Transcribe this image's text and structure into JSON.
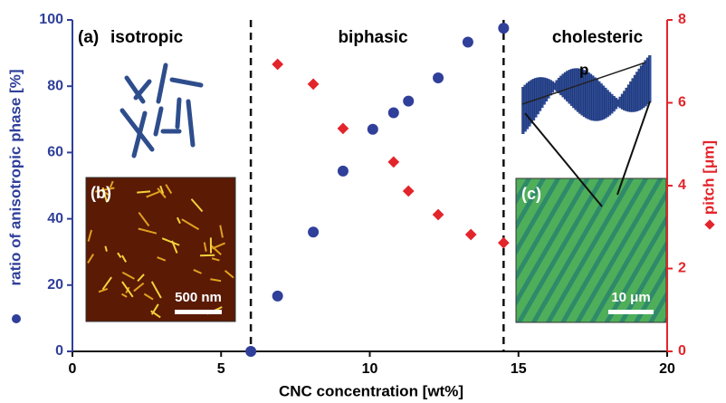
{
  "chart_data": {
    "type": "scatter",
    "xlabel": "CNC concentration [wt%]",
    "ylabel": "ratio of anisotropic phase [%]",
    "y2label": "pitch [μm]",
    "panel_label": "(a)",
    "regions": [
      "isotropic",
      "biphasic",
      "cholesteric"
    ],
    "phase_boundaries": [
      6,
      14.5
    ],
    "xlim": [
      0,
      20
    ],
    "xticks": [
      0,
      5,
      10,
      15,
      20
    ],
    "ylim": [
      0,
      100
    ],
    "yticks": [
      0,
      20,
      40,
      60,
      80,
      100
    ],
    "y2lim": [
      0,
      8
    ],
    "y2ticks": [
      0,
      2,
      4,
      6,
      8
    ],
    "series": [
      {
        "color": "#2f3f9a",
        "marker": "circle",
        "x": [
          6.0,
          6.9,
          8.1,
          9.1,
          10.1,
          10.8,
          11.3,
          12.3,
          13.3,
          14.5
        ],
        "values": [
          0,
          16.7,
          36,
          54.4,
          67,
          72,
          75.5,
          82.5,
          93.3,
          97.5
        ]
      },
      {
        "color": "#e3242b",
        "marker": "diamond",
        "axis": "y2",
        "x": [
          6.9,
          8.1,
          9.1,
          10.8,
          11.3,
          12.3,
          13.4,
          14.5
        ],
        "values": [
          6.93,
          6.45,
          5.38,
          4.57,
          3.87,
          3.3,
          2.82,
          2.62
        ]
      }
    ],
    "insets": [
      {
        "label": "(b)",
        "scale_bar": "500 nm"
      },
      {
        "label": "(c)",
        "scale_bar": "10 μm",
        "annotation": "p"
      }
    ]
  }
}
